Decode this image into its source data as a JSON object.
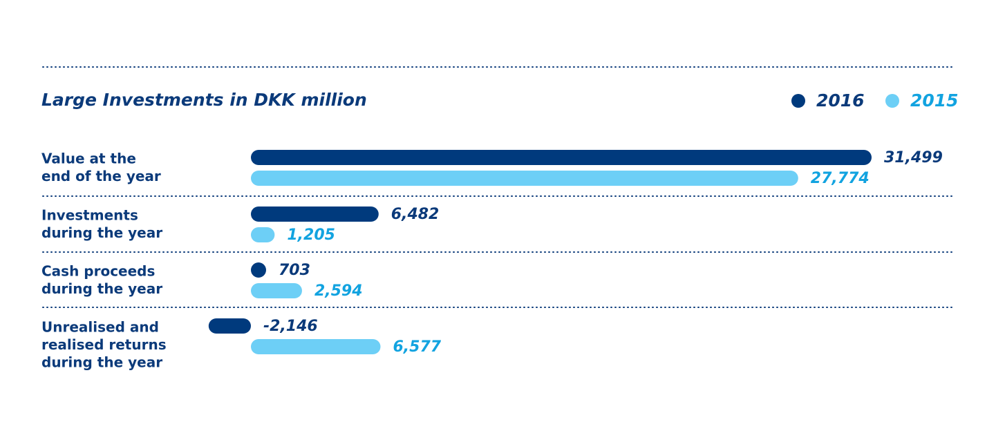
{
  "chart_data": {
    "type": "bar",
    "orientation": "horizontal",
    "title": "Large Investments in DKK  million",
    "categories": [
      [
        "Value at the",
        "end of the year"
      ],
      [
        "Investments",
        "during the year"
      ],
      [
        "Cash proceeds",
        "during the year"
      ],
      [
        "Unrealised and",
        "realised returns",
        "during the year"
      ]
    ],
    "series": [
      {
        "name": "2016",
        "color": "#003a7d",
        "label_color": "#0b3a7a",
        "values": [
          31499,
          6482,
          703,
          -2146
        ],
        "value_labels": [
          "31,499",
          "6,482",
          "703",
          "-2,146"
        ]
      },
      {
        "name": "2015",
        "color": "#6dcff6",
        "label_color": "#12a3e0",
        "values": [
          27774,
          1205,
          2594,
          6577
        ],
        "value_labels": [
          "27,774",
          "1,205",
          "2,594",
          "6,577"
        ]
      }
    ]
  }
}
